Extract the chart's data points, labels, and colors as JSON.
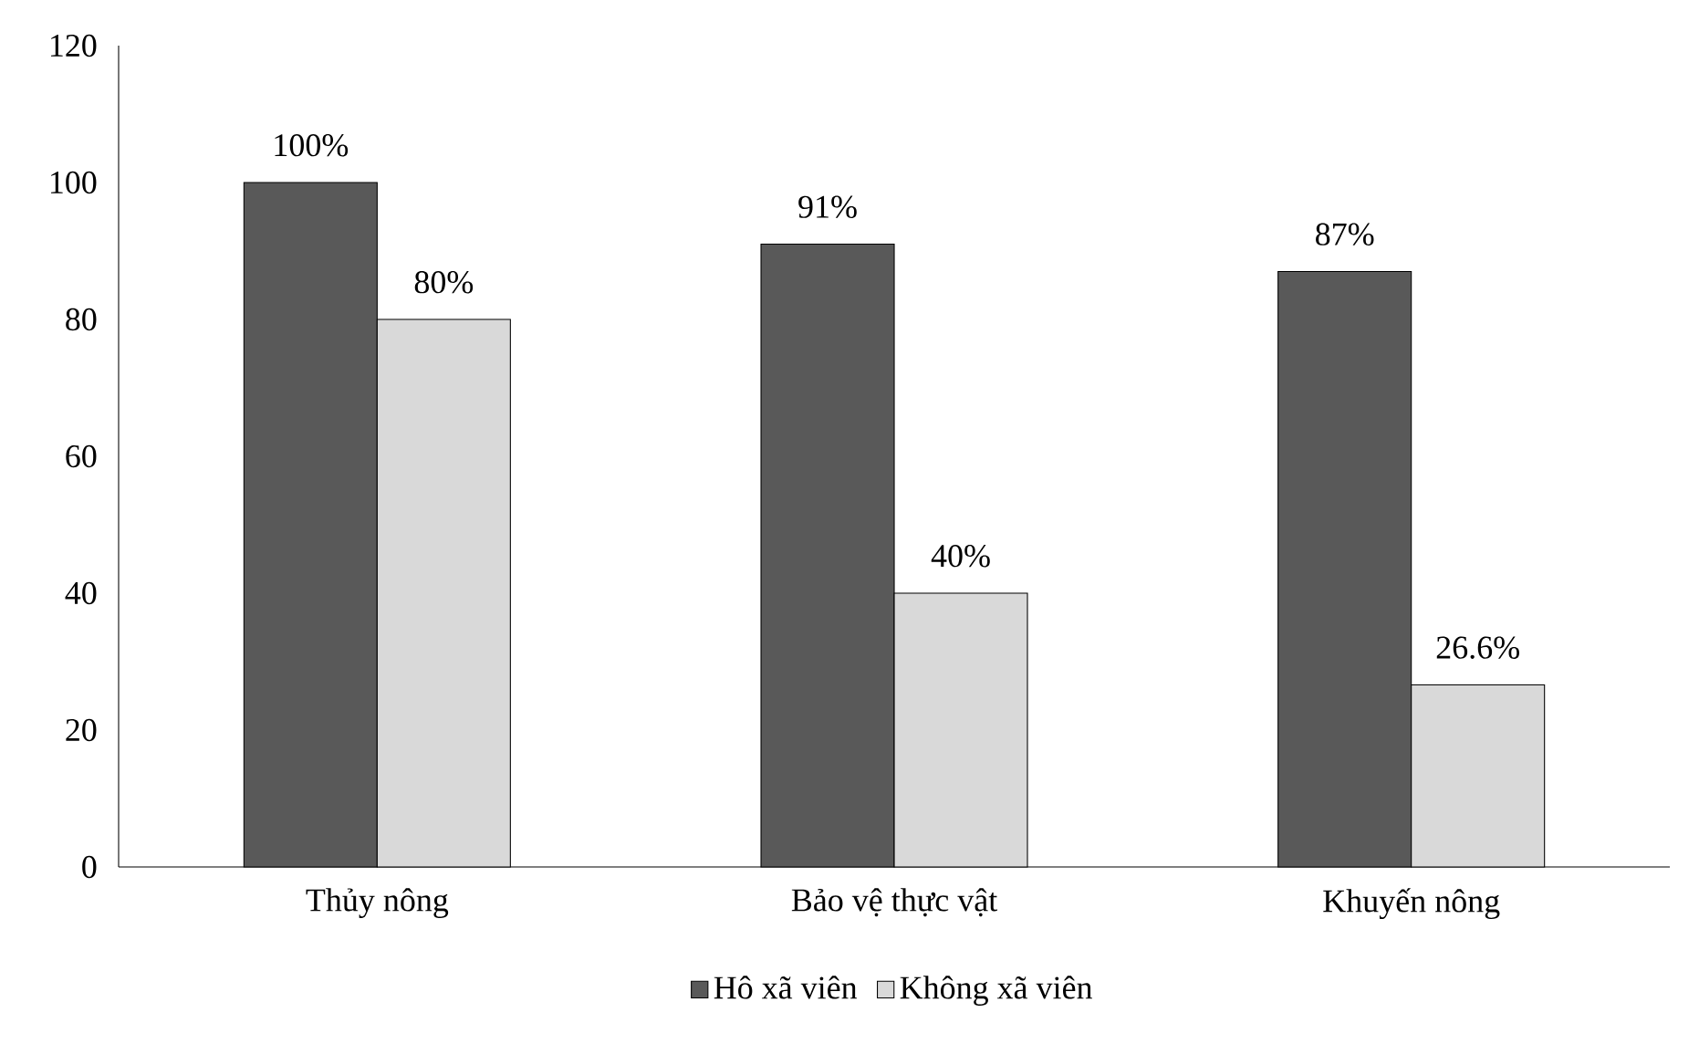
{
  "chart_data": {
    "type": "bar",
    "categories": [
      "Thủy nông",
      "Bảo vệ thực vật",
      "Khuyến nông"
    ],
    "series": [
      {
        "name": "Hô xã viên",
        "color": "#595959",
        "values": [
          100,
          91,
          87
        ],
        "value_labels": [
          "100%",
          "91%",
          "87%"
        ]
      },
      {
        "name": "Không xã viên",
        "color": "#d9d9d9",
        "values": [
          80,
          40,
          26.6
        ],
        "value_labels": [
          "80%",
          "40%",
          "26.6%"
        ]
      }
    ],
    "ylim": [
      0,
      120
    ],
    "yticks": [
      0,
      20,
      40,
      60,
      80,
      100,
      120
    ],
    "legend": "bottom"
  }
}
